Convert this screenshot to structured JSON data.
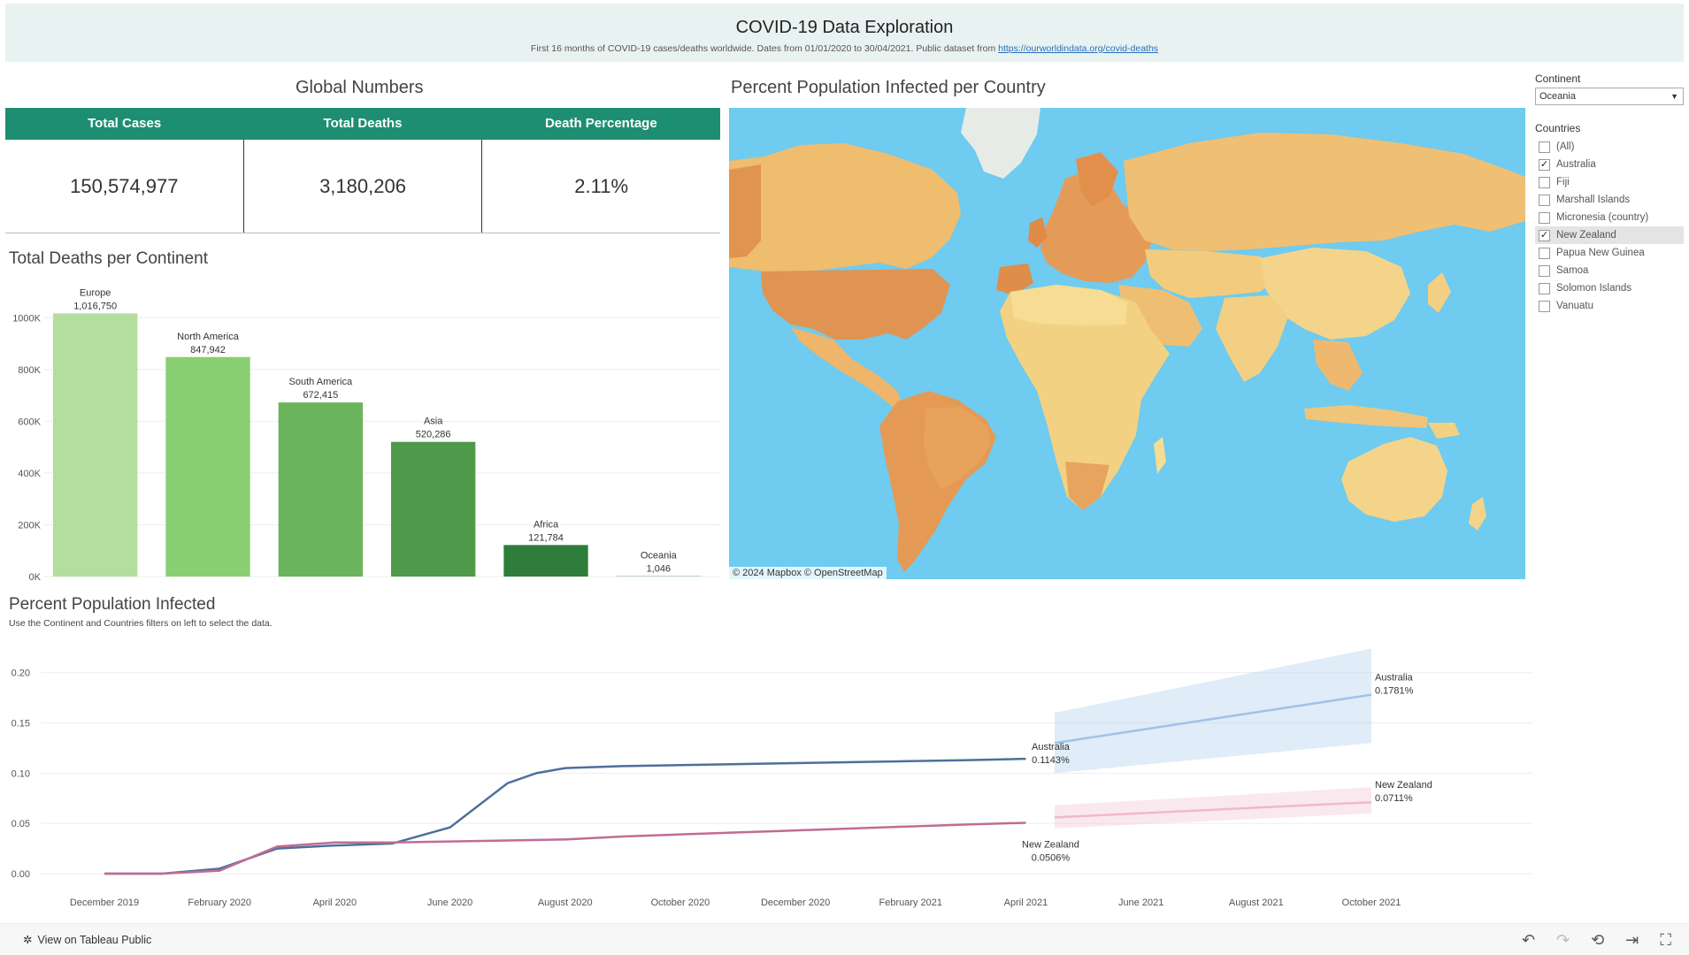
{
  "header": {
    "title": "COVID-19 Data Exploration",
    "subtitle": "First 16 months of COVID-19 cases/deaths worldwide. Dates from 01/01/2020 to 30/04/2021. Public dataset from ",
    "link": "https://ourworldindata.org/covid-deaths"
  },
  "global_numbers": {
    "title": "Global Numbers",
    "headers": [
      "Total Cases",
      "Total Deaths",
      "Death Percentage"
    ],
    "values": [
      "150,574,977",
      "3,180,206",
      "2.11%"
    ]
  },
  "map": {
    "title": "Percent Population Infected per Country",
    "attribution": "© 2024 Mapbox  © OpenStreetMap"
  },
  "filters": {
    "continent_label": "Continent",
    "continent_value": "Oceania",
    "countries_label": "Countries",
    "countries": [
      {
        "name": "(All)",
        "checked": false
      },
      {
        "name": "Australia",
        "checked": true
      },
      {
        "name": "Fiji",
        "checked": false
      },
      {
        "name": "Marshall Islands",
        "checked": false
      },
      {
        "name": "Micronesia (country)",
        "checked": false
      },
      {
        "name": "New Zealand",
        "checked": true
      },
      {
        "name": "Papua New Guinea",
        "checked": false
      },
      {
        "name": "Samoa",
        "checked": false
      },
      {
        "name": "Solomon Islands",
        "checked": false
      },
      {
        "name": "Vanuatu",
        "checked": false
      }
    ]
  },
  "bar_section": {
    "title": "Total Deaths per Continent"
  },
  "line_section": {
    "title": "Percent Population Infected",
    "note": "Use the Continent and Countries filters on left to select the data."
  },
  "footer": {
    "link": "View on Tableau Public"
  },
  "chart_data": [
    {
      "type": "bar",
      "title": "Total Deaths per Continent",
      "categories": [
        "Europe",
        "North America",
        "South America",
        "Asia",
        "Africa",
        "Oceania"
      ],
      "values": [
        1016750,
        847942,
        672415,
        520286,
        121784,
        1046
      ],
      "value_labels": [
        "1,016,750",
        "847,942",
        "672,415",
        "520,286",
        "121,784",
        "1,046"
      ],
      "colors": [
        "#b3dea0",
        "#88cf72",
        "#6ab45b",
        "#4f9a4a",
        "#2f7d3a",
        "#2f7d3a"
      ],
      "yticks": [
        "0K",
        "200K",
        "400K",
        "600K",
        "800K",
        "1000K"
      ],
      "ylim": [
        0,
        1100000
      ]
    },
    {
      "type": "line",
      "title": "Percent Population Infected",
      "xlabels": [
        "December 2019",
        "February 2020",
        "April 2020",
        "June 2020",
        "August 2020",
        "October 2020",
        "December 2020",
        "February 2021",
        "April 2021",
        "June 2021",
        "August 2021",
        "October 2021"
      ],
      "yticks": [
        "0.00",
        "0.05",
        "0.10",
        "0.15",
        "0.20"
      ],
      "ylim": [
        0,
        0.22
      ],
      "series": [
        {
          "name": "Australia",
          "color": "#4e6f9b",
          "x": [
            0,
            1,
            2,
            3,
            4,
            5,
            6,
            7,
            7.5,
            8,
            9,
            10,
            11,
            12,
            13,
            14,
            15,
            16
          ],
          "values": [
            0,
            0,
            0.005,
            0.025,
            0.028,
            0.03,
            0.046,
            0.09,
            0.1,
            0.105,
            0.107,
            0.108,
            0.109,
            0.11,
            0.111,
            0.112,
            0.113,
            0.1143
          ],
          "end_label": "Australia",
          "end_value": "0.1143%",
          "forecast": {
            "x": [
              16.5,
              22
            ],
            "values": [
              0.13,
              0.1781
            ],
            "band_low": [
              0.1,
              0.13
            ],
            "band_high": [
              0.16,
              0.224
            ],
            "label": "Australia",
            "value_label": "0.1781%",
            "color": "#9fc3e6"
          }
        },
        {
          "name": "New Zealand",
          "color": "#c06c94",
          "x": [
            0,
            1,
            2,
            3,
            4,
            5,
            6,
            7,
            8,
            9,
            10,
            11,
            12,
            13,
            14,
            15,
            16
          ],
          "values": [
            0,
            0,
            0.003,
            0.027,
            0.031,
            0.031,
            0.032,
            0.033,
            0.034,
            0.037,
            0.039,
            0.041,
            0.043,
            0.045,
            0.047,
            0.049,
            0.0506
          ],
          "end_label": "New Zealand",
          "end_value": "0.0506%",
          "forecast": {
            "x": [
              16.5,
              22
            ],
            "values": [
              0.056,
              0.0711
            ],
            "band_low": [
              0.045,
              0.06
            ],
            "band_high": [
              0.068,
              0.086
            ],
            "label": "New Zealand",
            "value_label": "0.0711%",
            "color": "#f0b8cc"
          }
        }
      ]
    }
  ]
}
